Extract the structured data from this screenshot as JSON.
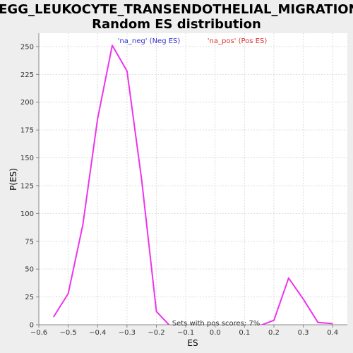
{
  "chart_data": {
    "type": "line",
    "title": [
      "KEGG_LEUKOCYTE_TRANSENDOTHELIAL_MIGRATION:",
      "Random ES distribution"
    ],
    "xlabel": "ES",
    "ylabel": "P(ES)",
    "xlim": [
      -0.6,
      0.45
    ],
    "ylim": [
      0,
      262
    ],
    "x_ticks": [
      -0.6,
      -0.5,
      -0.4,
      -0.3,
      -0.2,
      -0.1,
      0.0,
      0.1,
      0.2,
      0.3,
      0.4
    ],
    "x_tick_labels": [
      "−0.6",
      "−0.5",
      "−0.4",
      "−0.3",
      "−0.2",
      "−0.1",
      "0.0",
      "0.1",
      "0.2",
      "0.3",
      "0.4"
    ],
    "y_ticks": [
      0,
      25,
      50,
      75,
      100,
      125,
      150,
      175,
      200,
      225,
      250
    ],
    "y_tick_labels": [
      "0",
      "25",
      "50",
      "75",
      "100",
      "125",
      "150",
      "175",
      "200",
      "225",
      "250"
    ],
    "grid": true,
    "legend": [
      {
        "label": "'na_neg' (Neg ES)",
        "color": "#3333cc"
      },
      {
        "label": "'na_pos' (Pos ES)",
        "color": "#dd3333"
      }
    ],
    "series": [
      {
        "color": "#ee33ee",
        "x": [
          -0.55,
          -0.5,
          -0.45,
          -0.4,
          -0.35,
          -0.3,
          -0.25,
          -0.2,
          -0.15,
          -0.1,
          0.0,
          0.05,
          0.1,
          0.15,
          0.2,
          0.25,
          0.3,
          0.35,
          0.4
        ],
        "y": [
          7,
          28,
          90,
          185,
          251,
          228,
          130,
          12,
          -2,
          -3,
          -3,
          -3,
          -3,
          -1,
          4,
          42,
          23,
          2,
          1
        ]
      }
    ],
    "annotation": "Sets with pos scores: 7%"
  }
}
